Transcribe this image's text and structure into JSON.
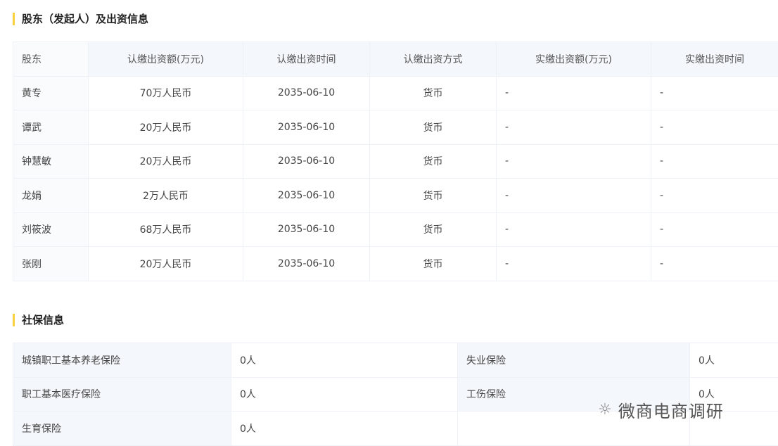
{
  "shareholders": {
    "title": "股东（发起人）及出资信息",
    "headers": [
      "股东",
      "认缴出资额(万元)",
      "认缴出资时间",
      "认缴出资方式",
      "实缴出资额(万元)",
      "实缴出资时间"
    ],
    "rows": [
      [
        "黄专",
        "70万人民币",
        "2035-06-10",
        "货币",
        "-",
        "-"
      ],
      [
        "谭武",
        "20万人民币",
        "2035-06-10",
        "货币",
        "-",
        "-"
      ],
      [
        "钟慧敏",
        "20万人民币",
        "2035-06-10",
        "货币",
        "-",
        "-"
      ],
      [
        "龙娟",
        "2万人民币",
        "2035-06-10",
        "货币",
        "-",
        "-"
      ],
      [
        "刘筱波",
        "68万人民币",
        "2035-06-10",
        "货币",
        "-",
        "-"
      ],
      [
        "张刚",
        "20万人民币",
        "2035-06-10",
        "货币",
        "-",
        "-"
      ]
    ]
  },
  "social": {
    "title": "社保信息",
    "rows": [
      [
        "城镇职工基本养老保险",
        "0人",
        "失业保险",
        "0人"
      ],
      [
        "职工基本医疗保险",
        "0人",
        "工伤保险",
        "0人"
      ],
      [
        "生育保险",
        "0人",
        "",
        ""
      ]
    ]
  },
  "watermark": {
    "text": "微商电商调研",
    "icon": "wechat-icon"
  }
}
